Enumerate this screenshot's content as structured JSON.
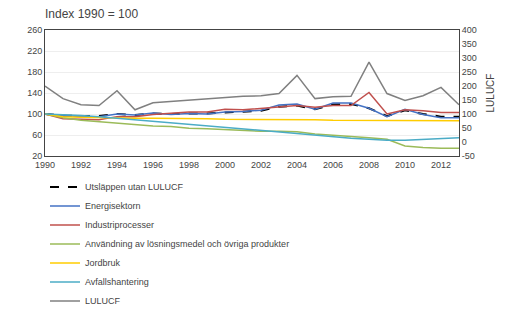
{
  "chart_data": {
    "type": "line",
    "title": "Index 1990 = 100",
    "y2label": "LULUCF",
    "x": [
      1990,
      1991,
      1992,
      1993,
      1994,
      1995,
      1996,
      1997,
      1998,
      1999,
      2000,
      2001,
      2002,
      2003,
      2004,
      2005,
      2006,
      2007,
      2008,
      2009,
      2010,
      2011,
      2012,
      2013
    ],
    "xlim": [
      1990,
      2013
    ],
    "xticks": [
      1990,
      1992,
      1994,
      1996,
      1998,
      2000,
      2002,
      2004,
      2006,
      2008,
      2010,
      2012
    ],
    "ylim": [
      20,
      260
    ],
    "yticks": [
      20,
      60,
      100,
      140,
      180,
      220,
      260
    ],
    "y2lim": [
      -50,
      400
    ],
    "y2ticks": [
      -50,
      0,
      50,
      100,
      150,
      200,
      250,
      300,
      350,
      400
    ],
    "grid": true,
    "legend": "bottom",
    "series": [
      {
        "name": "Utsläppen utan LULUCF",
        "color": "#000000",
        "line_style": "dashed",
        "values": [
          100,
          97,
          96,
          96,
          100,
          98,
          101,
          100,
          101,
          101,
          103,
          104,
          106,
          114,
          116,
          109,
          118,
          119,
          111,
          96,
          107,
          100,
          95,
          95
        ]
      },
      {
        "name": "Energisektorn",
        "color": "#4472C4",
        "line_style": "solid",
        "values": [
          100,
          97,
          95,
          95,
          100,
          98,
          102,
          99,
          101,
          100,
          104,
          105,
          107,
          117,
          119,
          109,
          121,
          121,
          111,
          95,
          109,
          99,
          93,
          93
        ]
      },
      {
        "name": "Industriprocesser",
        "color": "#C0504D",
        "line_style": "solid",
        "values": [
          100,
          91,
          90,
          89,
          95,
          95,
          99,
          101,
          104,
          104,
          109,
          108,
          111,
          114,
          116,
          113,
          116,
          116,
          141,
          100,
          108,
          106,
          103,
          103
        ]
      },
      {
        "name": "Användning av lösningsmedel och övriga produkter",
        "color": "#9BBB59",
        "line_style": "solid",
        "values": [
          100,
          93,
          88,
          85,
          82,
          80,
          77,
          76,
          73,
          72,
          70,
          68,
          67,
          67,
          66,
          62,
          59,
          57,
          55,
          52,
          39,
          36,
          35,
          35
        ]
      },
      {
        "name": "Jordbruk",
        "color": "#FFCC00",
        "line_style": "solid",
        "values": [
          100,
          95,
          94,
          93,
          92,
          92,
          92,
          92,
          91,
          91,
          90,
          90,
          90,
          89,
          89,
          89,
          88,
          88,
          88,
          87,
          87,
          87,
          87,
          87
        ]
      },
      {
        "name": "Avfallshantering",
        "color": "#4BACC6",
        "line_style": "solid",
        "values": [
          100,
          99,
          97,
          95,
          92,
          89,
          86,
          83,
          80,
          77,
          74,
          71,
          68,
          65,
          62,
          59,
          57,
          54,
          52,
          50,
          50,
          52,
          54,
          55
        ]
      },
      {
        "name": "LULUCF",
        "color": "#808080",
        "line_style": "solid",
        "axis": "y2",
        "values": [
          200,
          155,
          133,
          130,
          183,
          115,
          140,
          145,
          148,
          155,
          158,
          163,
          165,
          173,
          238,
          155,
          162,
          163,
          285,
          173,
          148,
          165,
          195,
          133
        ]
      }
    ]
  }
}
